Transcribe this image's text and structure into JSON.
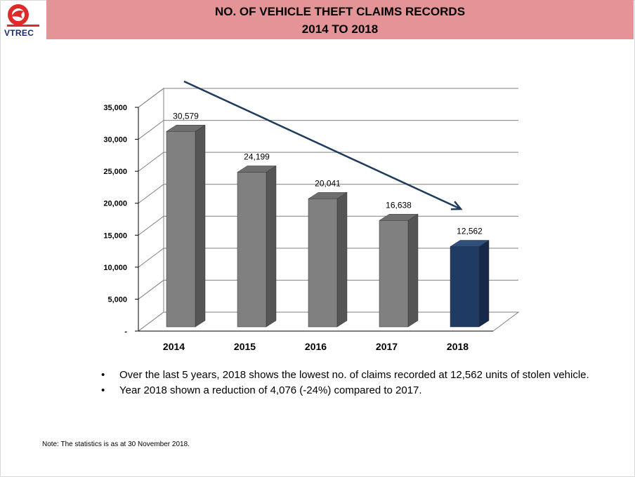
{
  "header": {
    "logo_text": "VTREC",
    "title_line1": "NO.  OF VEHICLE THEFT CLAIMS RECORDS",
    "title_line2": "2014 TO  2018"
  },
  "chart_data": {
    "type": "bar",
    "categories": [
      "2014",
      "2015",
      "2016",
      "2017",
      "2018"
    ],
    "values": [
      30579,
      24199,
      20041,
      16638,
      12562
    ],
    "data_labels": [
      "30,579",
      "24,199",
      "20,041",
      "16,638",
      "12,562"
    ],
    "ylim": [
      0,
      35000
    ],
    "yticks": [
      0,
      5000,
      10000,
      15000,
      20000,
      25000,
      30000,
      35000
    ],
    "ytick_labels": [
      "-",
      "5,000",
      "10,000",
      "15,000",
      "20,000",
      "25,000",
      "30,000",
      "35,000"
    ],
    "grid": true,
    "three_d": true,
    "trend_arrow": "downward",
    "colors": {
      "default_bar": "#808080",
      "highlight_bar": "#1f3a63",
      "arrow": "#1f3a5f",
      "grid": "#808080"
    },
    "highlight_category": "2018"
  },
  "bullets": [
    "Over the last 5 years,  2018 shows the lowest no. of claims recorded at 12,562 units of stolen vehicle.",
    "Year 2018 shown a reduction of 4,076 (-24%) compared to 2017."
  ],
  "bullet_symbol": "•",
  "note": "Note:  The statistics is as at 30 November 2018."
}
